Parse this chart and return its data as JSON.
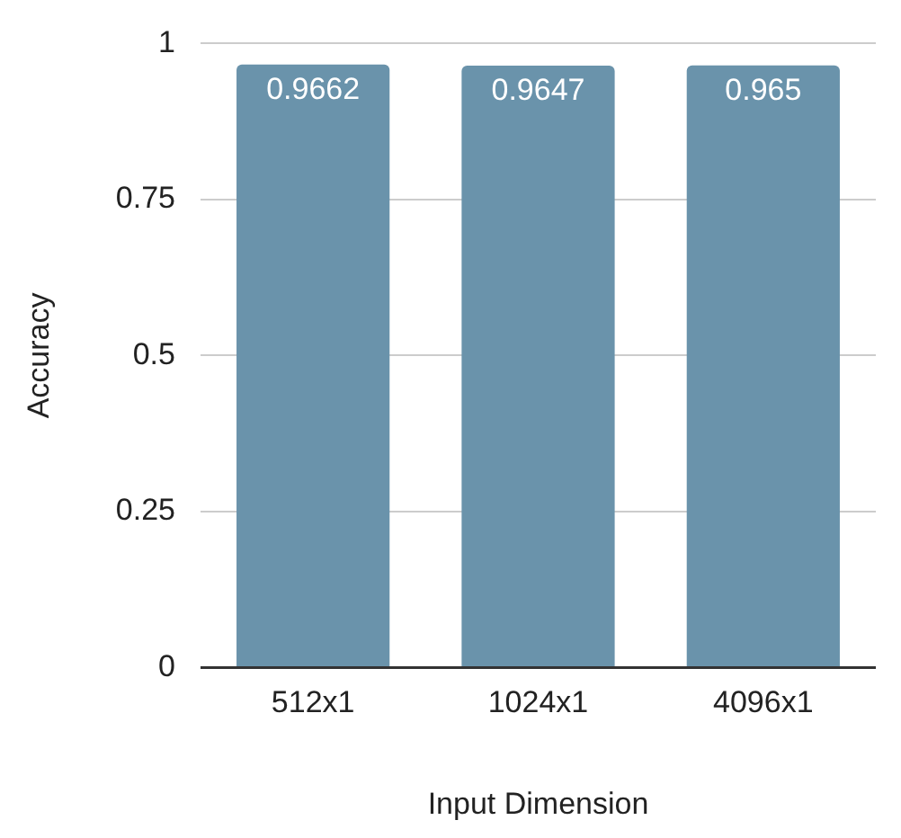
{
  "chart_data": {
    "type": "bar",
    "xlabel": "Input Dimension",
    "ylabel": "Accuracy",
    "categories": [
      "512x1",
      "1024x1",
      "4096x1"
    ],
    "values": [
      0.9662,
      0.9647,
      0.965
    ],
    "color": "#6a93ab",
    "ylim": [
      0,
      1
    ],
    "yticks": [
      0,
      0.25,
      0.5,
      0.75,
      1
    ],
    "grid": "y",
    "legend": false,
    "data_labels": true
  }
}
